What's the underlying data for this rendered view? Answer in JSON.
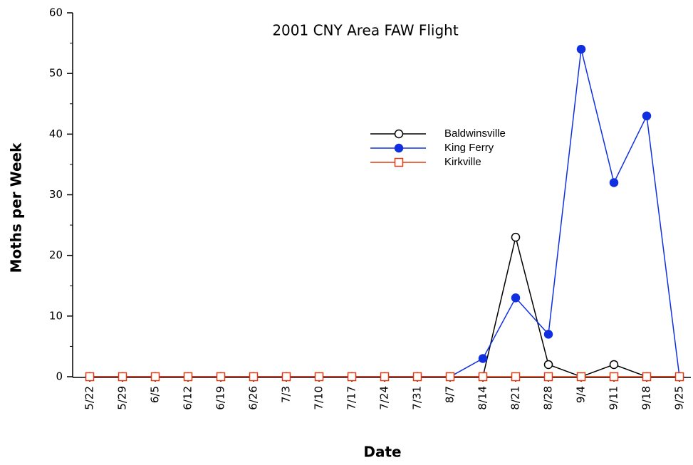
{
  "chart_data": {
    "type": "line",
    "title": "2001 CNY Area FAW Flight",
    "x_label": "Date",
    "y_label": "Moths per Week",
    "categories": [
      "5/22",
      "5/29",
      "6/5",
      "6/12",
      "6/19",
      "6/26",
      "7/3",
      "7/10",
      "7/17",
      "7/24",
      "7/31",
      "8/7",
      "8/14",
      "8/21",
      "8/28",
      "9/4",
      "9/11",
      "9/18",
      "9/25"
    ],
    "series": [
      {
        "name": "Baldwinsville",
        "color": "#000000",
        "marker": "open-circle",
        "values": [
          0,
          0,
          0,
          0,
          0,
          0,
          0,
          0,
          0,
          0,
          0,
          0,
          0,
          23,
          2,
          0,
          2,
          0,
          0
        ]
      },
      {
        "name": "King Ferry",
        "color": "#1030e0",
        "marker": "filled-circle",
        "values": [
          0,
          0,
          0,
          0,
          0,
          0,
          0,
          0,
          0,
          0,
          0,
          0,
          3,
          13,
          7,
          54,
          32,
          43,
          0
        ]
      },
      {
        "name": "Kirkville",
        "color": "#e03a10",
        "marker": "open-square",
        "values": [
          0,
          0,
          0,
          0,
          0,
          0,
          0,
          0,
          0,
          0,
          0,
          0,
          0,
          0,
          0,
          0,
          0,
          0,
          0
        ]
      }
    ],
    "ylim": [
      0,
      60
    ],
    "yticks": [
      0,
      10,
      20,
      30,
      40,
      50,
      60
    ]
  }
}
